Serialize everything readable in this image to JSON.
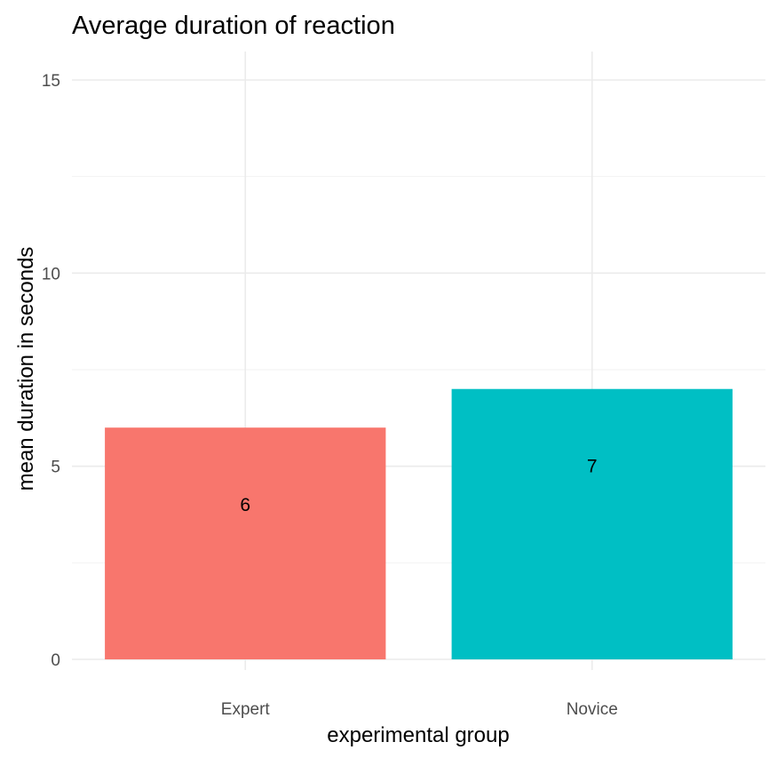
{
  "chart_data": {
    "type": "bar",
    "title": "Average duration of reaction",
    "xlabel": "experimental group",
    "ylabel": "mean duration in seconds",
    "categories": [
      "Expert",
      "Novice"
    ],
    "values": [
      6,
      7
    ],
    "data_labels": [
      "6",
      "7"
    ],
    "colors": [
      "#F8766D",
      "#00BFC4"
    ],
    "ylim": [
      0,
      15
    ],
    "yticks": [
      0,
      5,
      10,
      15
    ],
    "ytick_labels": [
      "0",
      "5",
      "10",
      "15"
    ],
    "grid": true,
    "legend": "none"
  }
}
